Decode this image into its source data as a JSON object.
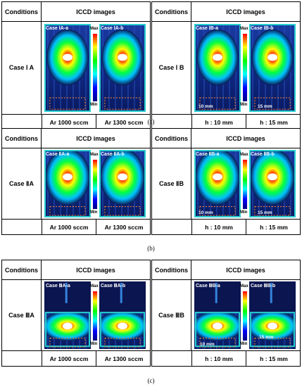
{
  "headers": {
    "conditions": "Conditions",
    "iccd": "ICCD images"
  },
  "scale": {
    "max": "Max",
    "min": "Min"
  },
  "panels": [
    {
      "caption": "(a)",
      "left": {
        "case": "Case Ⅰ A",
        "img_a": "Case ⅠA-a",
        "img_b": "Case ⅠA-b",
        "foot_a": "Ar 1000 sccm",
        "foot_b": "Ar 1300 sccm"
      },
      "right": {
        "case": "Case Ⅰ B",
        "img_a": "Case ⅠB-a",
        "img_b": "Case ⅠB-b",
        "foot_a": "h : 10 mm",
        "foot_b": "h :  15 mm",
        "meas_a": "10 mm",
        "meas_b": "15 mm"
      }
    },
    {
      "caption": "(b)",
      "left": {
        "case": "Case ⅡA",
        "img_a": "Case ⅡA-a",
        "img_b": "Case ⅡA-b",
        "foot_a": "Ar 1000 sccm",
        "foot_b": "Ar 1300 sccm"
      },
      "right": {
        "case": "Case ⅡB",
        "img_a": "Case ⅡB-a",
        "img_b": "Case ⅡB-b",
        "foot_a": "h : 10 mm",
        "foot_b": "h :  15 mm",
        "meas_a": "10 mm",
        "meas_b": "15 mm"
      }
    },
    {
      "caption": "(c)",
      "left": {
        "case": "Case ⅢA",
        "img_a": "Case ⅢA-a",
        "img_b": "Case ⅢA-b",
        "foot_a": "Ar 1000 sccm",
        "foot_b": "Ar 1300 sccm"
      },
      "right": {
        "case": "Case ⅢB",
        "img_a": "Case ⅢB-a",
        "img_b": "Case ⅢB-b",
        "foot_a": "h : 10 mm",
        "foot_b": "h :  15 mm",
        "meas_a": "10 mm",
        "meas_b": "15 mm"
      }
    }
  ]
}
